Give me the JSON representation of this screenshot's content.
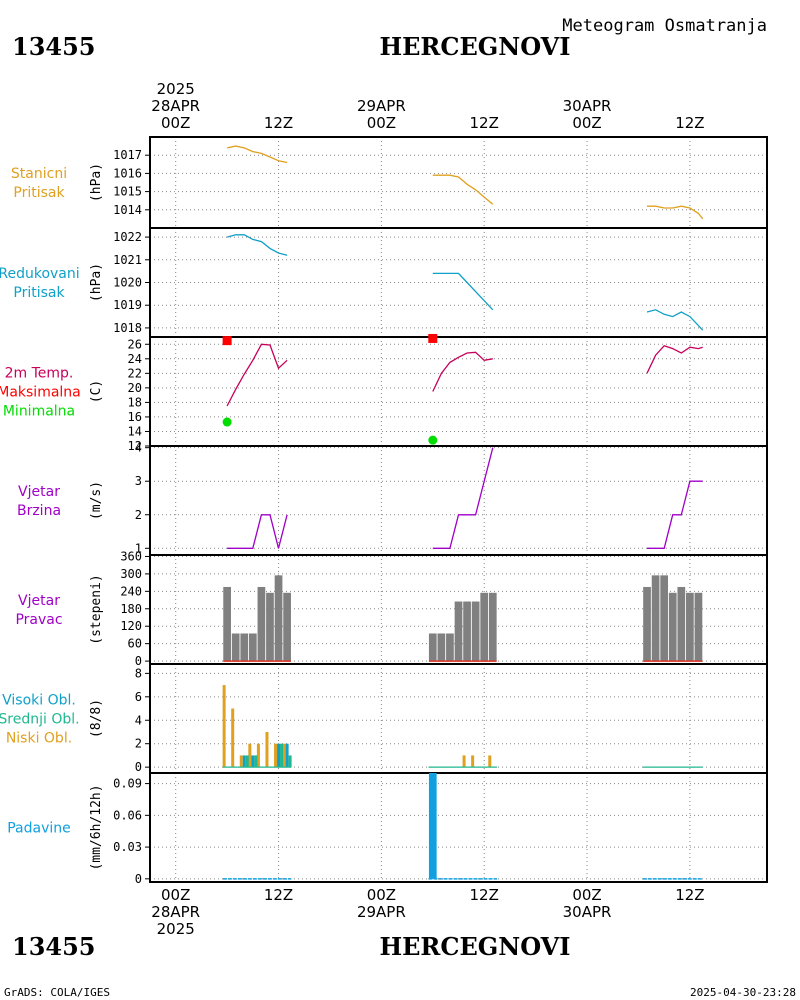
{
  "header": {
    "station_id": "13455",
    "station_name": "HERCEGNOVI",
    "subtitle": "Meteogram Osmatranja"
  },
  "footer": {
    "station_id": "13455",
    "station_name": "HERCEGNOVI",
    "credit": "GrADS: COLA/IGES",
    "timestamp": "2025-04-30-23:28"
  },
  "time_axis": {
    "range_hours": [
      -3,
      69
    ],
    "year": "2025",
    "top_ticks": [
      {
        "h": 0,
        "lines": [
          "2025",
          "28APR",
          "00Z"
        ]
      },
      {
        "h": 12,
        "lines": [
          "12Z"
        ]
      },
      {
        "h": 24,
        "lines": [
          "29APR",
          "00Z"
        ]
      },
      {
        "h": 36,
        "lines": [
          "12Z"
        ]
      },
      {
        "h": 48,
        "lines": [
          "30APR",
          "00Z"
        ]
      },
      {
        "h": 60,
        "lines": [
          "12Z"
        ]
      }
    ],
    "bottom_ticks": [
      {
        "h": 0,
        "lines": [
          "00Z",
          "28APR",
          "2025"
        ]
      },
      {
        "h": 12,
        "lines": [
          "12Z"
        ]
      },
      {
        "h": 24,
        "lines": [
          "00Z",
          "29APR"
        ]
      },
      {
        "h": 36,
        "lines": [
          "12Z"
        ]
      },
      {
        "h": 48,
        "lines": [
          "00Z",
          "30APR"
        ]
      },
      {
        "h": 60,
        "lines": [
          "12Z"
        ]
      }
    ]
  },
  "colors": {
    "station_pressure": "#e0a020",
    "reduced_pressure": "#10a0c8",
    "temperature": "#c8005a",
    "max_marker": "#ff0000",
    "min_marker": "#00dd00",
    "wind_speed": "#a000c8",
    "wind_dir_bar": "#808080",
    "wind_dir_base": "#e03020",
    "high_cloud": "#10a0c8",
    "mid_cloud": "#20b890",
    "low_cloud": "#e0a020",
    "precip": "#10a0e0",
    "grid": "#888888"
  },
  "chart_data": [
    {
      "type": "line",
      "label_lines": [
        "Stanicni",
        "Pritisak"
      ],
      "label_color_keys": [
        "station_pressure",
        "station_pressure"
      ],
      "ylabel": "(hPa)",
      "ylim": [
        1013,
        1018
      ],
      "yticks": [
        1014,
        1015,
        1016,
        1017
      ],
      "color_key": "station_pressure",
      "series": [
        {
          "points": [
            [
              6,
              1017.4
            ],
            [
              7,
              1017.5
            ],
            [
              8,
              1017.4
            ],
            [
              9,
              1017.2
            ],
            [
              10,
              1017.1
            ],
            [
              11,
              1016.9
            ],
            [
              12,
              1016.7
            ],
            [
              13,
              1016.6
            ]
          ]
        },
        {
          "points": [
            [
              30,
              1015.9
            ],
            [
              31,
              1015.9
            ],
            [
              32,
              1015.9
            ],
            [
              33,
              1015.8
            ],
            [
              34,
              1015.4
            ],
            [
              35,
              1015.1
            ],
            [
              36,
              1014.7
            ],
            [
              37,
              1014.3
            ]
          ]
        },
        {
          "points": [
            [
              55,
              1014.2
            ],
            [
              56,
              1014.2
            ],
            [
              57,
              1014.1
            ],
            [
              58,
              1014.1
            ],
            [
              59,
              1014.2
            ],
            [
              60,
              1014.1
            ],
            [
              61,
              1013.8
            ],
            [
              61.5,
              1013.5
            ]
          ]
        }
      ]
    },
    {
      "type": "line",
      "label_lines": [
        "Redukovani",
        "Pritisak"
      ],
      "label_color_keys": [
        "reduced_pressure",
        "reduced_pressure"
      ],
      "ylabel": "(hPa)",
      "ylim": [
        1017.6,
        1022.4
      ],
      "yticks": [
        1018,
        1019,
        1020,
        1021,
        1022
      ],
      "color_key": "reduced_pressure",
      "series": [
        {
          "points": [
            [
              6,
              1022
            ],
            [
              7,
              1022.1
            ],
            [
              8,
              1022.1
            ],
            [
              9,
              1021.9
            ],
            [
              10,
              1021.8
            ],
            [
              11,
              1021.5
            ],
            [
              12,
              1021.3
            ],
            [
              13,
              1021.2
            ]
          ]
        },
        {
          "points": [
            [
              30,
              1020.4
            ],
            [
              31,
              1020.4
            ],
            [
              32,
              1020.4
            ],
            [
              33,
              1020.4
            ],
            [
              34,
              1020.0
            ],
            [
              35,
              1019.6
            ],
            [
              36,
              1019.2
            ],
            [
              37,
              1018.8
            ]
          ]
        },
        {
          "points": [
            [
              55,
              1018.7
            ],
            [
              56,
              1018.8
            ],
            [
              57,
              1018.6
            ],
            [
              58,
              1018.5
            ],
            [
              59,
              1018.7
            ],
            [
              60,
              1018.5
            ],
            [
              61,
              1018.1
            ],
            [
              61.5,
              1017.9
            ]
          ]
        }
      ]
    },
    {
      "type": "line",
      "label_lines": [
        "2m Temp.",
        "Maksimalna",
        "Minimalna"
      ],
      "label_color_keys": [
        "temperature",
        "max_marker",
        "min_marker"
      ],
      "ylabel": "(C)",
      "ylim": [
        12,
        27
      ],
      "yticks": [
        12,
        14,
        16,
        18,
        20,
        22,
        24,
        26
      ],
      "color_key": "temperature",
      "series": [
        {
          "points": [
            [
              6,
              17.5
            ],
            [
              7,
              19.8
            ],
            [
              8,
              21.9
            ],
            [
              9,
              23.8
            ],
            [
              10,
              26.0
            ],
            [
              11,
              25.9
            ],
            [
              12,
              22.7
            ],
            [
              13,
              23.8
            ]
          ]
        },
        {
          "points": [
            [
              30,
              19.5
            ],
            [
              31,
              22.0
            ],
            [
              32,
              23.5
            ],
            [
              33,
              24.2
            ],
            [
              34,
              24.8
            ],
            [
              35,
              24.9
            ],
            [
              36,
              23.8
            ],
            [
              37,
              24.0
            ]
          ]
        },
        {
          "points": [
            [
              55,
              22.0
            ],
            [
              56,
              24.5
            ],
            [
              57,
              25.8
            ],
            [
              58,
              25.4
            ],
            [
              59,
              24.8
            ],
            [
              60,
              25.6
            ],
            [
              61,
              25.4
            ],
            [
              61.5,
              25.6
            ]
          ]
        }
      ],
      "max_points": [
        [
          6,
          26.5
        ],
        [
          30,
          26.8
        ]
      ],
      "min_points": [
        [
          6,
          15.3
        ],
        [
          30,
          12.8
        ]
      ]
    },
    {
      "type": "line",
      "label_lines": [
        "Vjetar",
        "Brzina"
      ],
      "label_color_keys": [
        "wind_speed",
        "wind_speed"
      ],
      "ylabel": "(m/s)",
      "ylim": [
        0.8,
        4.05
      ],
      "yticks": [
        1,
        2,
        3,
        4
      ],
      "color_key": "wind_speed",
      "series": [
        {
          "points": [
            [
              6,
              1
            ],
            [
              7,
              1
            ],
            [
              8,
              1
            ],
            [
              9,
              1
            ],
            [
              10,
              2
            ],
            [
              11,
              2
            ],
            [
              12,
              1
            ],
            [
              13,
              2
            ]
          ]
        },
        {
          "points": [
            [
              30,
              1
            ],
            [
              31,
              1
            ],
            [
              32,
              1
            ],
            [
              33,
              2
            ],
            [
              34,
              2
            ],
            [
              35,
              2
            ],
            [
              36,
              3
            ],
            [
              37,
              4
            ]
          ]
        },
        {
          "points": [
            [
              55,
              1
            ],
            [
              56,
              1
            ],
            [
              57,
              1
            ],
            [
              58,
              2
            ],
            [
              59,
              2
            ],
            [
              60,
              3
            ],
            [
              61,
              3
            ],
            [
              61.5,
              3
            ]
          ]
        }
      ]
    },
    {
      "type": "bar",
      "label_lines": [
        "Vjetar",
        "Pravac"
      ],
      "label_color_keys": [
        "wind_speed",
        "wind_speed"
      ],
      "ylabel": "(stepeni)",
      "ylim": [
        -10,
        365
      ],
      "yticks": [
        0,
        60,
        120,
        180,
        240,
        300,
        360
      ],
      "color_key": "wind_dir_bar",
      "bar_width_h": 0.9,
      "bars": [
        [
          6,
          255
        ],
        [
          7,
          95
        ],
        [
          8,
          95
        ],
        [
          9,
          95
        ],
        [
          10,
          255
        ],
        [
          11,
          235
        ],
        [
          12,
          295
        ],
        [
          13,
          235
        ],
        [
          30,
          95
        ],
        [
          31,
          95
        ],
        [
          32,
          95
        ],
        [
          33,
          205
        ],
        [
          34,
          205
        ],
        [
          35,
          205
        ],
        [
          36,
          235
        ],
        [
          37,
          235
        ],
        [
          55,
          255
        ],
        [
          56,
          295
        ],
        [
          57,
          295
        ],
        [
          58,
          235
        ],
        [
          59,
          255
        ],
        [
          60,
          235
        ],
        [
          61,
          235
        ]
      ]
    },
    {
      "type": "bar",
      "label_lines": [
        "Visoki Obl.",
        "Srednji Obl.",
        "Niski Obl."
      ],
      "label_color_keys": [
        "high_cloud",
        "mid_cloud",
        "low_cloud"
      ],
      "ylabel": "(8/8)",
      "ylim": [
        -0.5,
        8.8
      ],
      "yticks": [
        0,
        2,
        4,
        6,
        8
      ],
      "low": [
        [
          6,
          7
        ],
        [
          7,
          5
        ],
        [
          8,
          1
        ],
        [
          9,
          2
        ],
        [
          10,
          2
        ],
        [
          11,
          3
        ],
        [
          12,
          2
        ],
        [
          13,
          2
        ],
        [
          34,
          1
        ],
        [
          35,
          1
        ],
        [
          37,
          1
        ]
      ],
      "mid": [
        [
          8,
          1
        ],
        [
          9,
          1
        ],
        [
          12,
          2
        ],
        [
          13,
          1
        ]
      ],
      "high": [
        [
          8,
          1
        ],
        [
          9,
          1
        ],
        [
          12,
          2
        ],
        [
          13,
          2
        ]
      ]
    },
    {
      "type": "bar",
      "label_lines": [
        "Padavine"
      ],
      "label_color_keys": [
        "precip"
      ],
      "ylabel": "(mm/6h/12h)",
      "ylim": [
        -0.003,
        0.1
      ],
      "yticks": [
        0,
        0.03,
        0.06,
        0.09
      ],
      "ytick_labels": [
        "0",
        "0.03",
        "0.06",
        "0.09"
      ],
      "color_key": "precip",
      "bars": [
        [
          30,
          0.1
        ]
      ],
      "baseline_ranges": [
        [
          5.5,
          13.5
        ],
        [
          29.5,
          37.5
        ],
        [
          54.5,
          61.5
        ]
      ]
    }
  ]
}
